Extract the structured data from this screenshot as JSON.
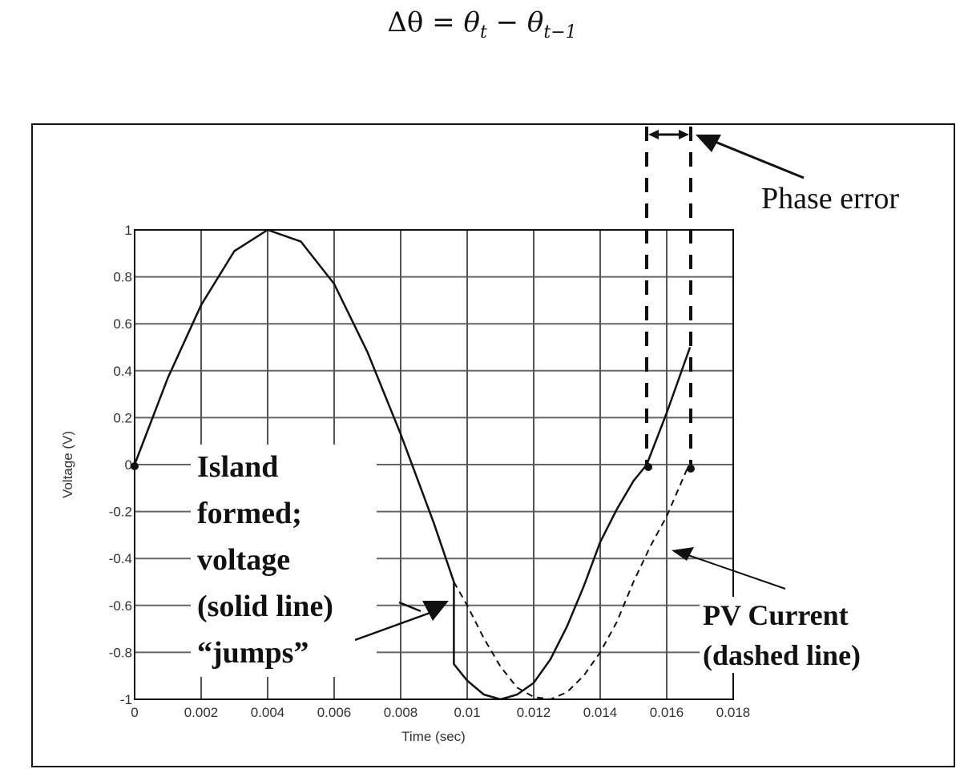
{
  "equation": {
    "lhs": "Δθ",
    "equals": "=",
    "term1": "θ",
    "term1_sub": "t",
    "minus": "−",
    "term2": "θ",
    "term2_sub": "t−1"
  },
  "annotations": {
    "phase_error": "Phase error",
    "island_lines": [
      "Island",
      "formed;",
      "voltage",
      "(solid line)",
      "“jumps”"
    ],
    "pv_lines": [
      "PV Current",
      "(dashed line)"
    ]
  },
  "chart_data": {
    "type": "line",
    "title": "",
    "xlabel": "Time (sec)",
    "ylabel": "Voltage (V)",
    "xlim": [
      0,
      0.018
    ],
    "ylim": [
      -1,
      1
    ],
    "xticks": [
      "0",
      "0.002",
      "0.004",
      "0.006",
      "0.008",
      "0.01",
      "0.012",
      "0.014",
      "0.016",
      "0.018"
    ],
    "yticks": [
      "1",
      "0.8",
      "0.6",
      "0.4",
      "0.2",
      "0",
      "-0.2",
      "-0.4",
      "-0.6",
      "-0.8",
      "-1"
    ],
    "grid": true,
    "series": [
      {
        "name": "Voltage (solid line)",
        "style": "solid",
        "x": [
          0,
          0.001,
          0.002,
          0.003,
          0.004,
          0.005,
          0.006,
          0.007,
          0.008,
          0.009,
          0.0096,
          0.0096,
          0.01,
          0.0105,
          0.011,
          0.0115,
          0.012,
          0.0125,
          0.013,
          0.0135,
          0.014,
          0.0145,
          0.015,
          0.0154,
          0.016,
          0.0167
        ],
        "values": [
          0,
          0.37,
          0.68,
          0.91,
          1.0,
          0.95,
          0.77,
          0.48,
          0.13,
          -0.25,
          -0.5,
          -0.85,
          -0.92,
          -0.98,
          -1.0,
          -0.98,
          -0.93,
          -0.83,
          -0.69,
          -0.52,
          -0.33,
          -0.19,
          -0.07,
          0.0,
          0.22,
          0.5
        ]
      },
      {
        "name": "PV Current (dashed line)",
        "style": "dashed",
        "x": [
          0.0096,
          0.01,
          0.0105,
          0.011,
          0.0115,
          0.012,
          0.0125,
          0.013,
          0.0135,
          0.014,
          0.0145,
          0.015,
          0.0155,
          0.016,
          0.01667
        ],
        "values": [
          -0.5,
          -0.6,
          -0.74,
          -0.86,
          -0.95,
          -0.99,
          -1.0,
          -0.97,
          -0.9,
          -0.8,
          -0.67,
          -0.5,
          -0.35,
          -0.22,
          0.0
        ]
      }
    ],
    "markers": [
      {
        "x": 0,
        "y": 0,
        "label": "start zero crossing"
      },
      {
        "x": 0.0154,
        "y": 0,
        "label": "voltage zero crossing"
      },
      {
        "x": 0.01667,
        "y": 0,
        "label": "current zero crossing"
      }
    ],
    "annotations": [
      "Phase error",
      "Island formed; voltage (solid line) “jumps”",
      "PV Current (dashed line)"
    ]
  }
}
